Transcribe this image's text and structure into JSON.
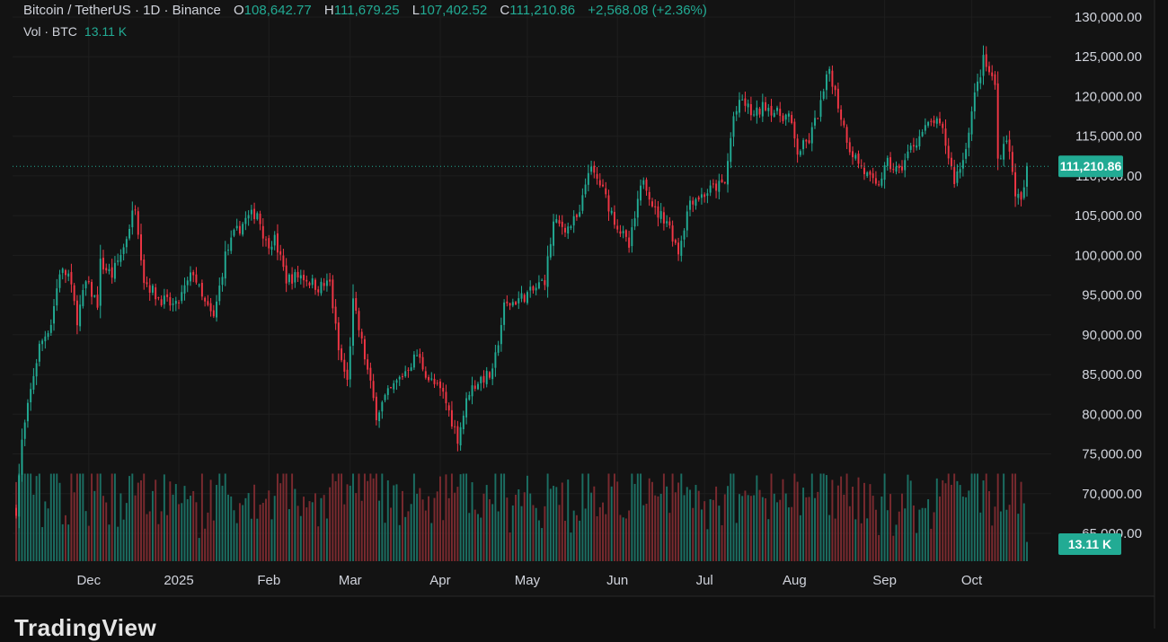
{
  "header": {
    "symbol": "Bitcoin / TetherUS · 1D · Binance",
    "open_label": "O",
    "open_value": "108,642.77",
    "high_label": "H",
    "high_value": "111,679.25",
    "low_label": "L",
    "low_value": "107,402.52",
    "close_label": "C",
    "close_value": "111,210.86",
    "change": "+2,568.08 (+2.36%)",
    "volume_label": "Vol · BTC",
    "volume_value": "13.11 K"
  },
  "brand": "TradingView",
  "colors": {
    "background": "#0f0f0f",
    "pane": "#131313",
    "up": "#22ab94",
    "down": "#f23645",
    "up_volume": "#1b6e62",
    "down_volume": "#7a2a2f",
    "axis_text": "#d1d4dc",
    "grid": "#1e1e1e",
    "price_badge": "#22ab94"
  },
  "chart_data": {
    "type": "candlestick",
    "symbol": "BTCUSDT",
    "ylim": [
      60000,
      130000
    ],
    "y_ticks": [
      "130,000.00",
      "125,000.00",
      "120,000.00",
      "115,000.00",
      "110,000.00",
      "105,000.00",
      "100,000.00",
      "95,000.00",
      "90,000.00",
      "85,000.00",
      "80,000.00",
      "75,000.00",
      "70,000.00",
      "65,000.00"
    ],
    "y_tick_values": [
      130000,
      125000,
      120000,
      115000,
      110000,
      105000,
      100000,
      95000,
      90000,
      85000,
      80000,
      75000,
      70000,
      65000
    ],
    "x_ticks": [
      "Dec",
      "2025",
      "Feb",
      "Mar",
      "Apr",
      "May",
      "Jun",
      "Jul",
      "Aug",
      "Sep",
      "Oct"
    ],
    "x_tick_dates": [
      "2024-12-01",
      "2025-01-01",
      "2025-02-01",
      "2025-03-01",
      "2025-04-01",
      "2025-05-01",
      "2025-06-01",
      "2025-07-01",
      "2025-08-01",
      "2025-09-01",
      "2025-10-01"
    ],
    "last_price": 111210.86,
    "last_price_label": "111,210.86",
    "last_volume_label": "13.11 K",
    "close_path": [
      [
        "2024-11-06",
        68000
      ],
      [
        "2024-11-08",
        76500
      ],
      [
        "2024-11-12",
        85000
      ],
      [
        "2024-11-14",
        88500
      ],
      [
        "2024-11-18",
        91500
      ],
      [
        "2024-11-21",
        98000
      ],
      [
        "2024-11-24",
        97500
      ],
      [
        "2024-11-27",
        92000
      ],
      [
        "2024-11-30",
        96500
      ],
      [
        "2024-12-04",
        94000
      ],
      [
        "2024-12-05",
        99000
      ],
      [
        "2024-12-09",
        97500
      ],
      [
        "2024-12-13",
        101000
      ],
      [
        "2024-12-17",
        106500
      ],
      [
        "2024-12-20",
        97000
      ],
      [
        "2024-12-24",
        95000
      ],
      [
        "2024-12-28",
        94000
      ],
      [
        "2024-12-31",
        93500
      ],
      [
        "2025-01-06",
        98000
      ],
      [
        "2025-01-09",
        94500
      ],
      [
        "2025-01-13",
        92000
      ],
      [
        "2025-01-17",
        100000
      ],
      [
        "2025-01-20",
        102500
      ],
      [
        "2025-01-24",
        104500
      ],
      [
        "2025-01-28",
        105500
      ],
      [
        "2025-01-31",
        101500
      ],
      [
        "2025-02-03",
        102000
      ],
      [
        "2025-02-07",
        97000
      ],
      [
        "2025-02-12",
        97500
      ],
      [
        "2025-02-18",
        96000
      ],
      [
        "2025-02-22",
        96500
      ],
      [
        "2025-02-25",
        88000
      ],
      [
        "2025-02-28",
        84000
      ],
      [
        "2025-03-02",
        94000
      ],
      [
        "2025-03-05",
        89000
      ],
      [
        "2025-03-10",
        80000
      ],
      [
        "2025-03-13",
        82000
      ],
      [
        "2025-03-19",
        85000
      ],
      [
        "2025-03-24",
        87500
      ],
      [
        "2025-03-28",
        84500
      ],
      [
        "2025-04-02",
        82500
      ],
      [
        "2025-04-07",
        77000
      ],
      [
        "2025-04-11",
        83000
      ],
      [
        "2025-04-15",
        84500
      ],
      [
        "2025-04-19",
        85000
      ],
      [
        "2025-04-23",
        93500
      ],
      [
        "2025-04-28",
        94500
      ],
      [
        "2025-05-03",
        95500
      ],
      [
        "2025-05-07",
        97000
      ],
      [
        "2025-05-10",
        104000
      ],
      [
        "2025-05-15",
        103500
      ],
      [
        "2025-05-19",
        105000
      ],
      [
        "2025-05-22",
        111000
      ],
      [
        "2025-05-26",
        109000
      ],
      [
        "2025-05-31",
        104500
      ],
      [
        "2025-06-05",
        101000
      ],
      [
        "2025-06-10",
        110000
      ],
      [
        "2025-06-14",
        105500
      ],
      [
        "2025-06-18",
        104500
      ],
      [
        "2025-06-22",
        100500
      ],
      [
        "2025-06-26",
        107000
      ],
      [
        "2025-06-30",
        107500
      ],
      [
        "2025-07-04",
        108500
      ],
      [
        "2025-07-08",
        109000
      ],
      [
        "2025-07-11",
        117500
      ],
      [
        "2025-07-14",
        119500
      ],
      [
        "2025-07-18",
        117500
      ],
      [
        "2025-07-22",
        119000
      ],
      [
        "2025-07-26",
        117800
      ],
      [
        "2025-07-30",
        117500
      ],
      [
        "2025-08-02",
        113000
      ],
      [
        "2025-08-06",
        114500
      ],
      [
        "2025-08-10",
        119000
      ],
      [
        "2025-08-13",
        123500
      ],
      [
        "2025-08-17",
        117500
      ],
      [
        "2025-08-20",
        113500
      ],
      [
        "2025-08-25",
        110500
      ],
      [
        "2025-08-29",
        108500
      ],
      [
        "2025-09-02",
        111500
      ],
      [
        "2025-09-06",
        110500
      ],
      [
        "2025-09-10",
        113500
      ],
      [
        "2025-09-14",
        115500
      ],
      [
        "2025-09-18",
        117000
      ],
      [
        "2025-09-21",
        115500
      ],
      [
        "2025-09-25",
        109500
      ],
      [
        "2025-09-28",
        112000
      ],
      [
        "2025-10-02",
        120000
      ],
      [
        "2025-10-05",
        124500
      ],
      [
        "2025-10-09",
        121500
      ],
      [
        "2025-10-10",
        112000
      ],
      [
        "2025-10-13",
        115000
      ],
      [
        "2025-10-16",
        108000
      ],
      [
        "2025-10-18",
        106500
      ],
      [
        "2025-10-19",
        108642.77
      ],
      [
        "2025-10-20",
        111210.86
      ]
    ]
  }
}
